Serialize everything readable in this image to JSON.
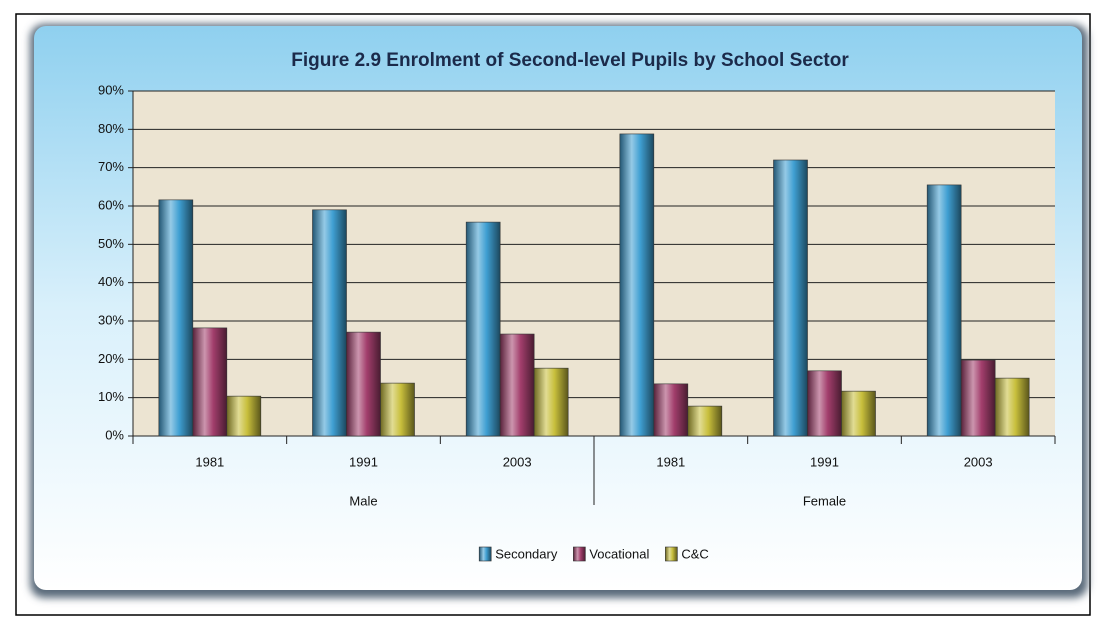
{
  "chart_data": {
    "type": "bar",
    "title": "Figure 2.9    Enrolment of Second-level Pupils by School Sector",
    "categories": [
      "1981",
      "1991",
      "2003",
      "1981",
      "1991",
      "2003"
    ],
    "groups": [
      "Male",
      "Female"
    ],
    "series": [
      {
        "name": "Secondary",
        "color": "#3f9fd2",
        "values": [
          61.6,
          59,
          55.8,
          78.8,
          72,
          65.5
        ]
      },
      {
        "name": "Vocational",
        "color": "#a23e6c",
        "values": [
          28.2,
          27.1,
          26.6,
          13.6,
          17,
          19.8
        ]
      },
      {
        "name": "C&C",
        "color": "#c8bf3c",
        "values": [
          10.4,
          13.8,
          17.7,
          7.8,
          11.7,
          15.1
        ]
      }
    ],
    "ylim": [
      0,
      90
    ],
    "yticks": [
      {
        "value": 0,
        "label": "0%"
      },
      {
        "value": 10,
        "label": "10%"
      },
      {
        "value": 20,
        "label": "20%"
      },
      {
        "value": 30,
        "label": "30%"
      },
      {
        "value": 40,
        "label": "40%"
      },
      {
        "value": 50,
        "label": "50%"
      },
      {
        "value": 60,
        "label": "60%"
      },
      {
        "value": 70,
        "label": "70%"
      },
      {
        "value": 80,
        "label": "80%"
      },
      {
        "value": 90,
        "label": "90%"
      }
    ],
    "grid": true,
    "legend": "bottom"
  }
}
